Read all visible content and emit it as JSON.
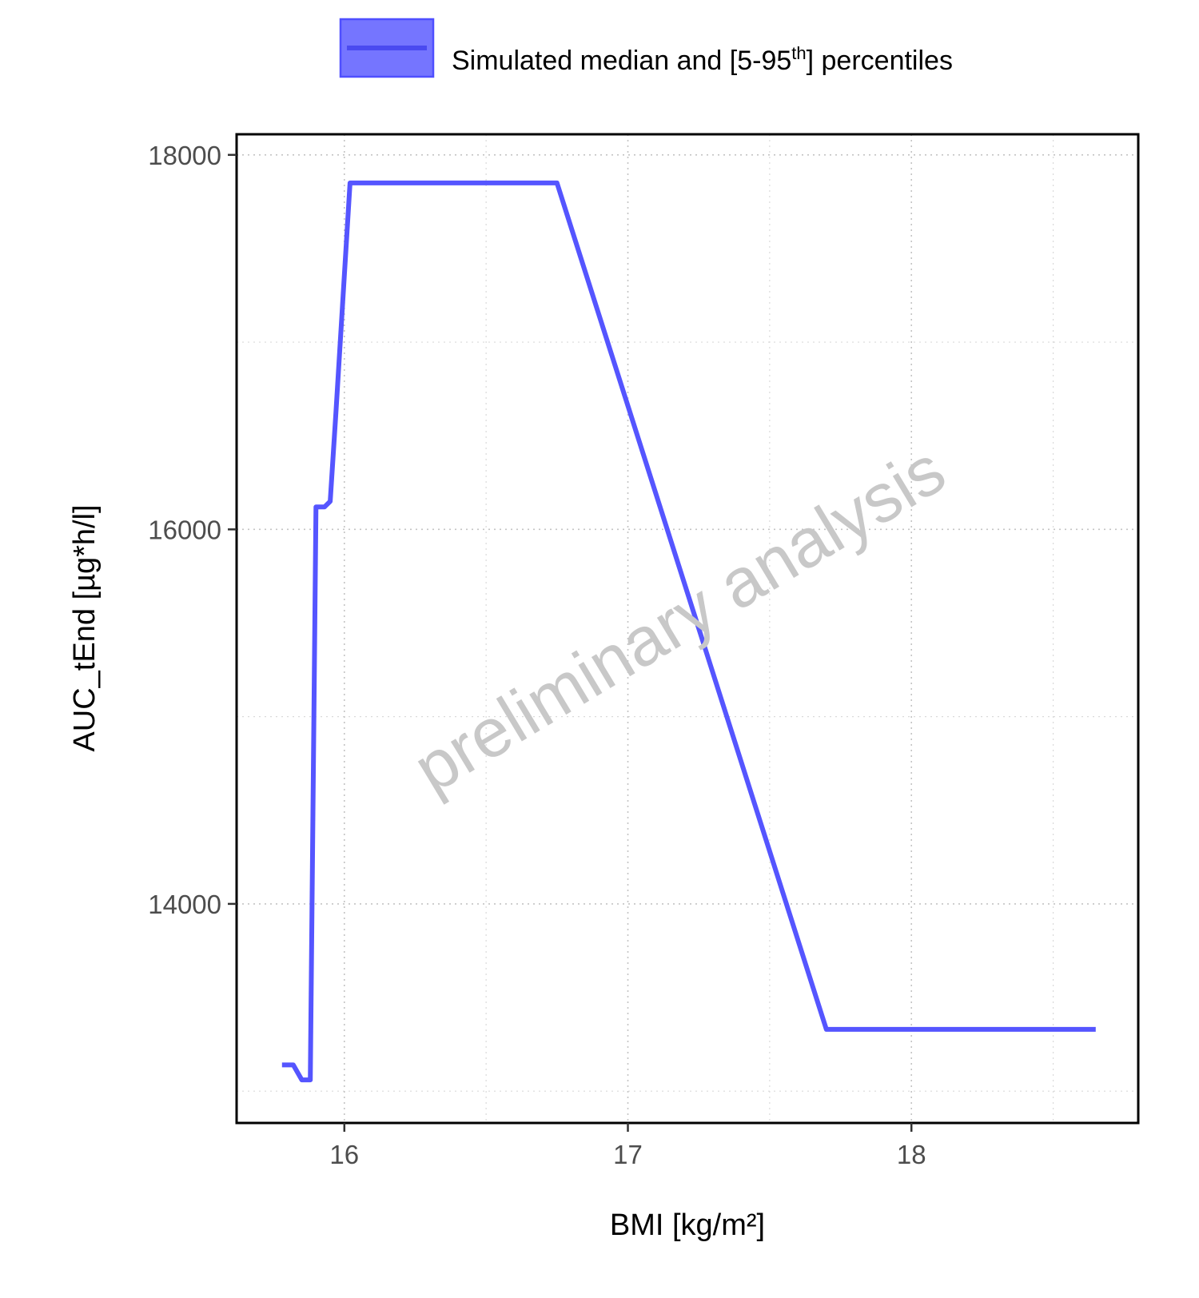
{
  "legend": {
    "label_before": "Simulated median and [5-95",
    "label_sup": "th",
    "label_after": "] percentiles",
    "swatch_color": "#5555ff"
  },
  "watermark": "preliminary analysis",
  "chart_data": {
    "type": "line",
    "xlabel": "BMI [kg/m²]",
    "ylabel": "AUC_tEnd [µg*h/l]",
    "xlim": [
      15.62,
      18.8
    ],
    "ylim": [
      12830,
      18110
    ],
    "xticks": [
      16,
      17,
      18
    ],
    "xtick_labels": [
      "16",
      "17",
      "18"
    ],
    "yticks": [
      14000,
      16000,
      18000
    ],
    "ytick_labels": [
      "14000",
      "16000",
      "18000"
    ],
    "minor_xticks": [
      16.5,
      17.5,
      18.5
    ],
    "minor_yticks": [
      13000,
      15000,
      17000
    ],
    "grid": true,
    "legend_position": "top",
    "series": [
      {
        "name": "Simulated median and [5-95th] percentiles",
        "color": "#5555ff",
        "x": [
          15.78,
          15.82,
          15.85,
          15.88,
          15.9,
          15.93,
          15.95,
          15.97,
          16.02,
          16.75,
          17.7,
          18.65
        ],
        "y": [
          13140,
          13140,
          13060,
          13060,
          16120,
          16120,
          16150,
          16620,
          17850,
          17850,
          13330,
          13330
        ]
      }
    ]
  }
}
